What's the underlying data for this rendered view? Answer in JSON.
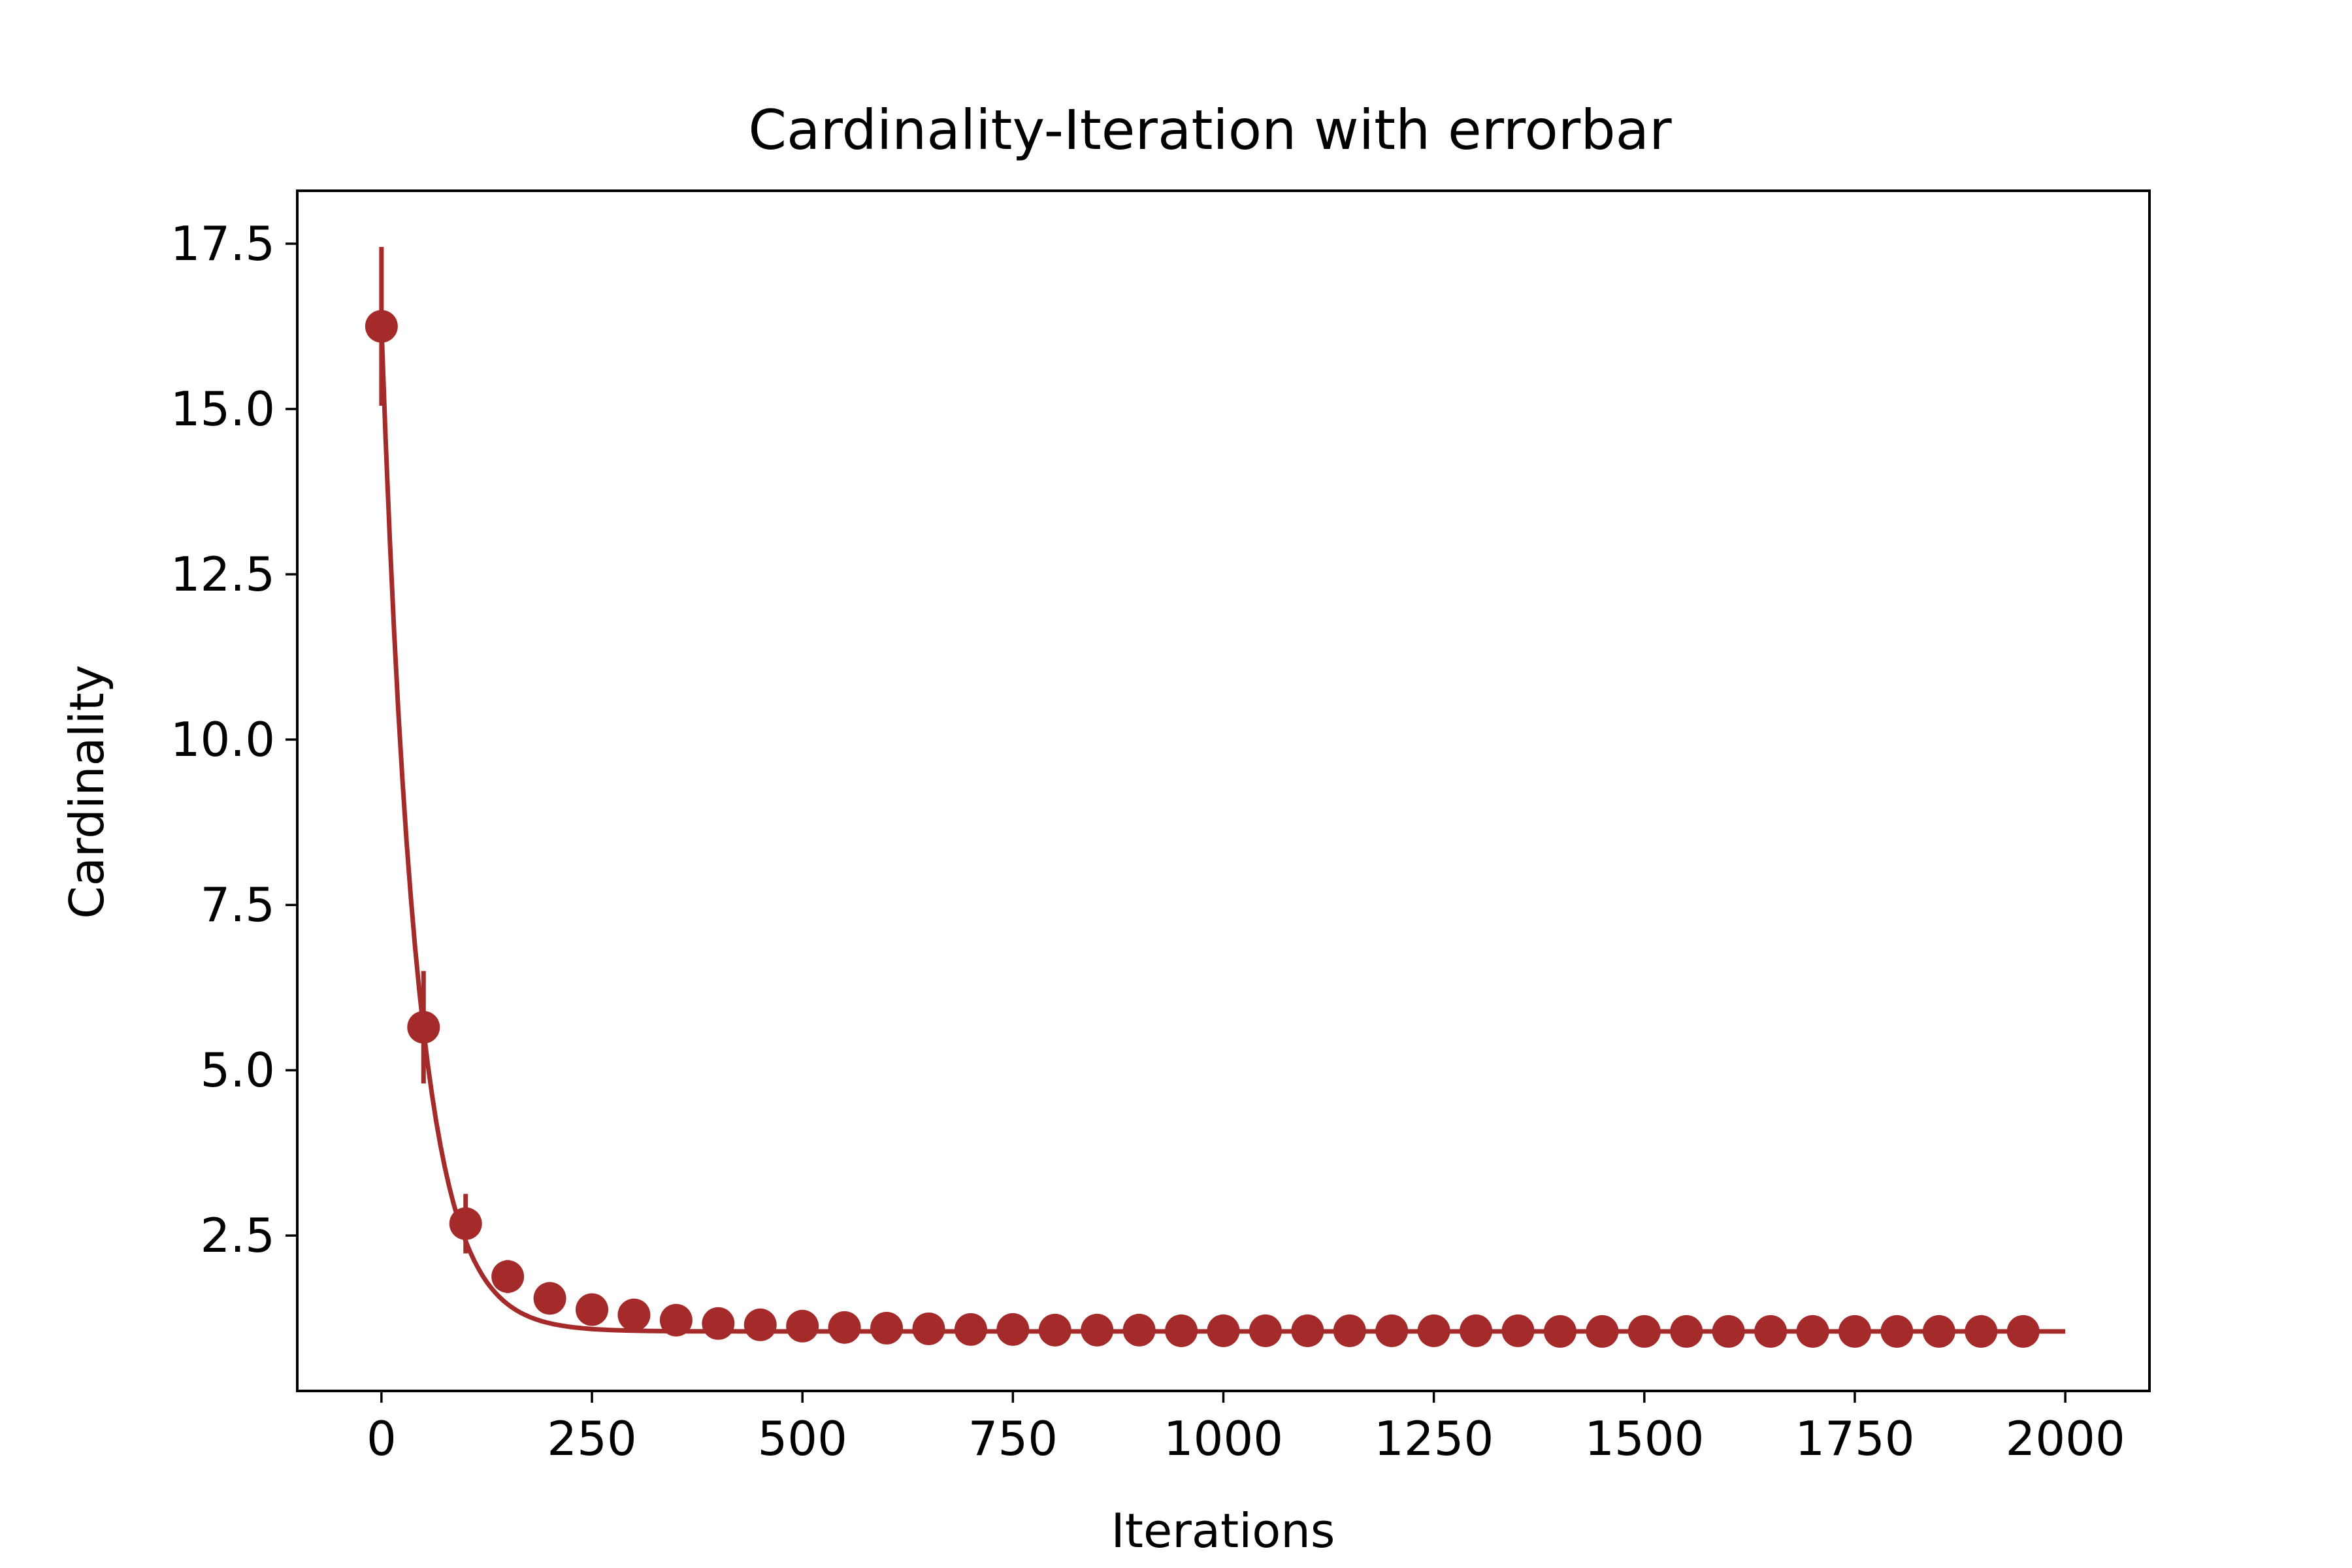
{
  "colors": {
    "series": "#a52a2a",
    "axes": "#000000",
    "background": "#ffffff"
  },
  "chart_data": {
    "type": "line",
    "title": "Cardinality-Iteration with errorbar",
    "xlabel": "Iterations",
    "ylabel": "Cardinality",
    "xlim": [
      -100,
      2100
    ],
    "ylim": [
      0.15,
      18.3
    ],
    "xticks": [
      0,
      250,
      500,
      750,
      1000,
      1250,
      1500,
      1750,
      2000
    ],
    "xtick_labels": [
      "0",
      "250",
      "500",
      "750",
      "1000",
      "1250",
      "1500",
      "1750",
      "2000"
    ],
    "yticks": [
      2.5,
      5.0,
      7.5,
      10.0,
      12.5,
      15.0,
      17.5
    ],
    "ytick_labels": [
      "2.5",
      "5.0",
      "7.5",
      "10.0",
      "12.5",
      "15.0",
      "17.5"
    ],
    "grid": false,
    "series": [
      {
        "marker": "circle",
        "x": [
          0,
          50,
          100,
          150,
          200,
          250,
          300,
          350,
          400,
          450,
          500,
          550,
          600,
          650,
          700,
          750,
          800,
          850,
          900,
          950,
          1000,
          1050,
          1100,
          1150,
          1200,
          1250,
          1300,
          1350,
          1400,
          1450,
          1500,
          1550,
          1600,
          1650,
          1700,
          1750,
          1800,
          1850,
          1900,
          1950
        ],
        "y": [
          16.25,
          5.65,
          2.68,
          1.88,
          1.55,
          1.38,
          1.3,
          1.22,
          1.17,
          1.15,
          1.13,
          1.11,
          1.1,
          1.09,
          1.08,
          1.08,
          1.07,
          1.07,
          1.07,
          1.06,
          1.06,
          1.06,
          1.06,
          1.06,
          1.06,
          1.06,
          1.06,
          1.06,
          1.05,
          1.05,
          1.05,
          1.05,
          1.05,
          1.05,
          1.05,
          1.05,
          1.05,
          1.05,
          1.05,
          1.05
        ],
        "yerr": [
          1.2,
          0.85,
          0.45,
          0.25,
          0.12,
          0.08,
          0.06,
          0.05,
          0.04,
          0.04,
          0.03,
          0.03,
          0.03,
          0.03,
          0.02,
          0.02,
          0.02,
          0.02,
          0.02,
          0.02,
          0.02,
          0.02,
          0.02,
          0.02,
          0.02,
          0.02,
          0.02,
          0.02,
          0.02,
          0.02,
          0.02,
          0.02,
          0.02,
          0.02,
          0.02,
          0.02,
          0.02,
          0.02,
          0.02,
          0.02
        ]
      },
      {
        "marker": "none",
        "fit": "exponential",
        "x_range": [
          0,
          2000
        ],
        "asymptote": 1.05,
        "initial": 16.25,
        "decay_per_50": 0.3
      }
    ]
  }
}
